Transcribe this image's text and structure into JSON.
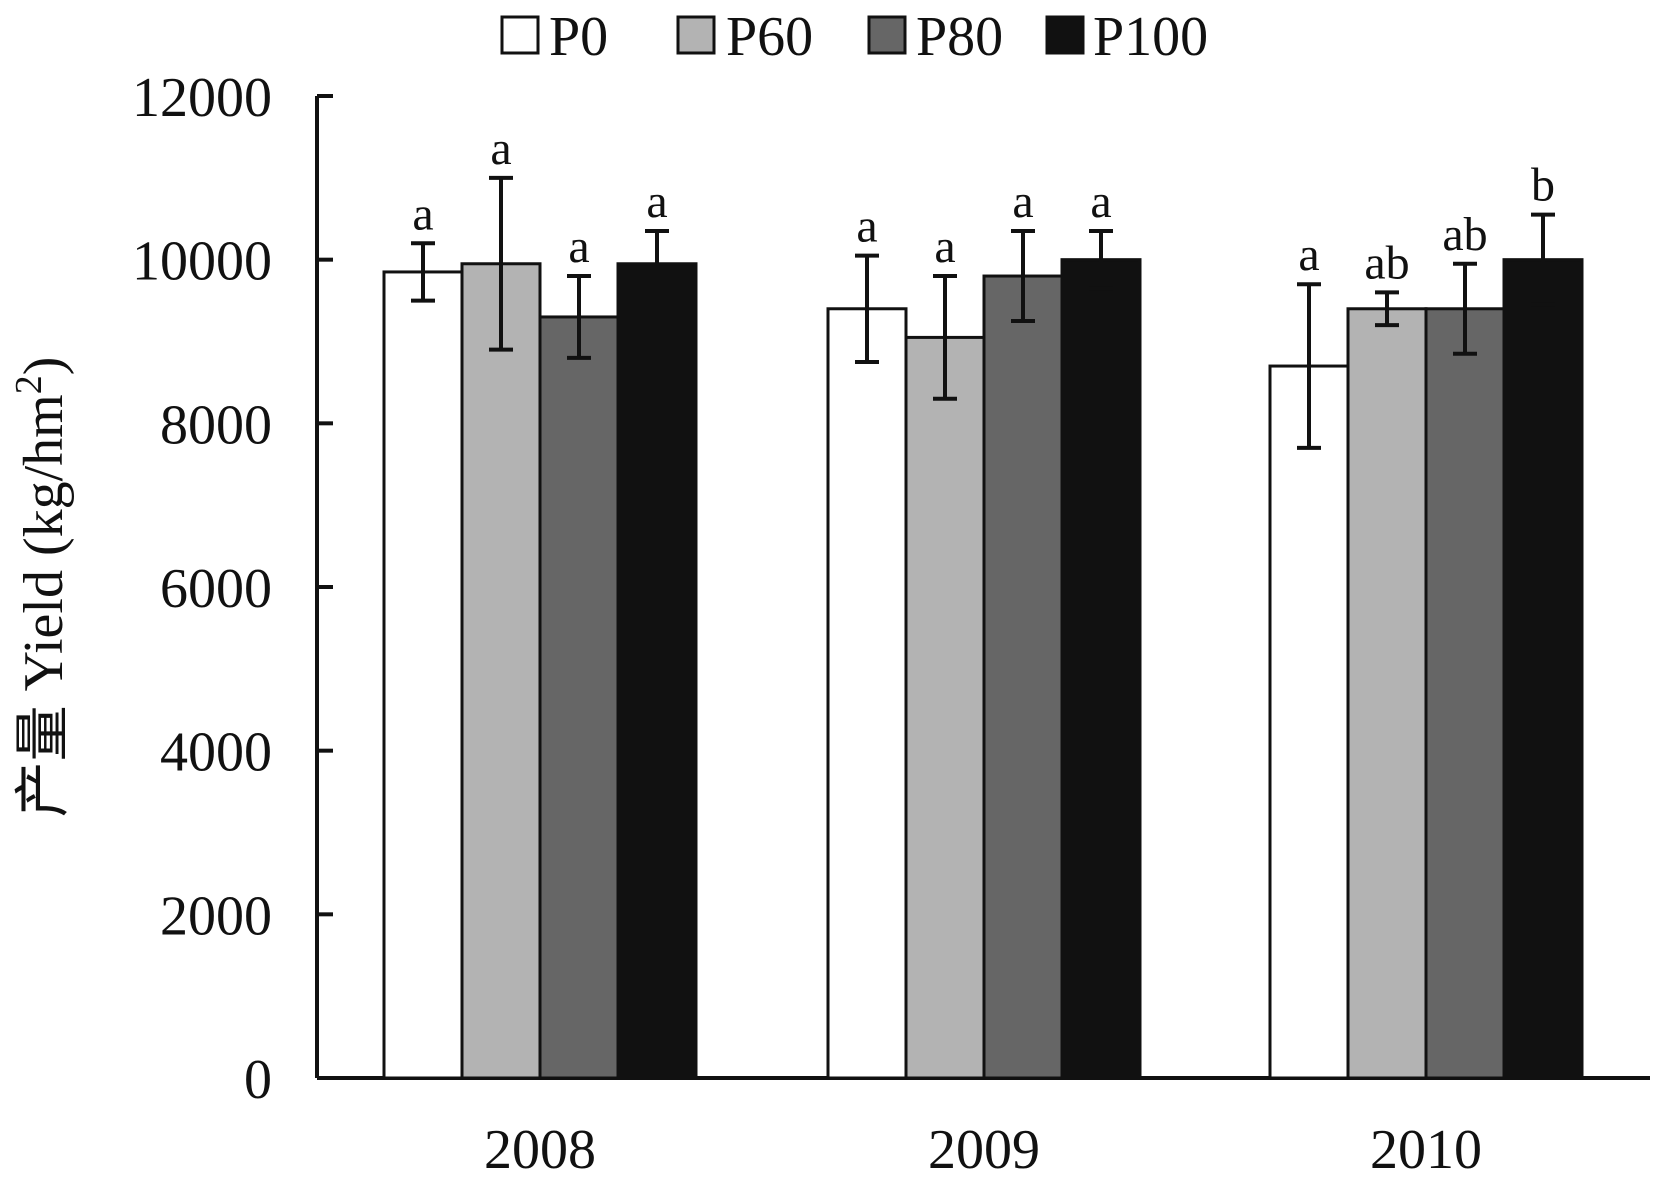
{
  "chart_data": {
    "type": "bar",
    "ylabel": "产量 Yield (kg/hm²)",
    "ylabel_parts": {
      "prefix": "产量 Yield (kg/hm",
      "superscript": "2",
      "suffix": ")"
    },
    "ylim": [
      0,
      12000
    ],
    "yticks": [
      0,
      2000,
      4000,
      6000,
      8000,
      10000,
      12000
    ],
    "categories": [
      "2008",
      "2009",
      "2010"
    ],
    "legend_position": "top",
    "grid": false,
    "series": [
      {
        "name": "P0",
        "color": "#ffffff",
        "values": [
          9850,
          9400,
          8700
        ],
        "errors": [
          350,
          650,
          1000
        ],
        "labels": [
          "a",
          "a",
          "a"
        ]
      },
      {
        "name": "P60",
        "color": "#b3b3b3",
        "values": [
          9950,
          9050,
          9400
        ],
        "errors": [
          1050,
          750,
          200
        ],
        "labels": [
          "a",
          "a",
          "ab"
        ]
      },
      {
        "name": "P80",
        "color": "#666666",
        "values": [
          9300,
          9800,
          9400
        ],
        "errors": [
          500,
          550,
          550
        ],
        "labels": [
          "a",
          "a",
          "ab"
        ]
      },
      {
        "name": "P100",
        "color": "#111111",
        "values": [
          9950,
          10000,
          10000
        ],
        "errors": [
          400,
          350,
          550
        ],
        "labels": [
          "a",
          "a",
          "b"
        ]
      }
    ]
  }
}
